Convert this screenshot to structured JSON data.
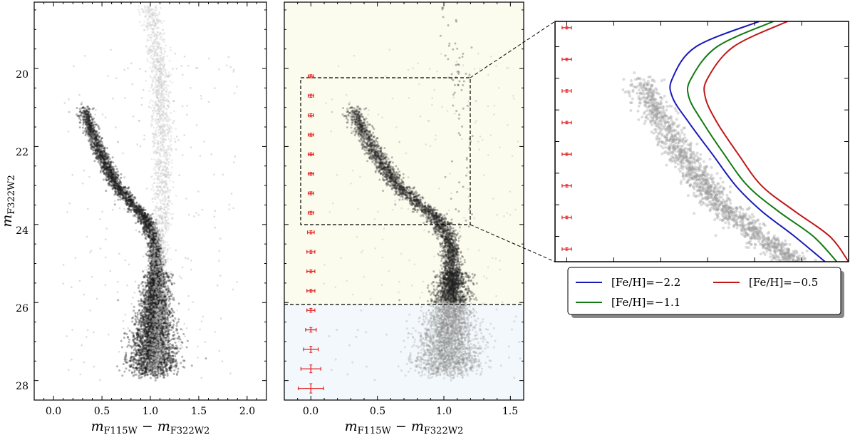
{
  "figure": {
    "panels_count": 3
  },
  "chart_data": [
    {
      "type": "scatter",
      "panel": "left",
      "xlabel": "m_F115W − m_F322W2",
      "xlabel_main": "m",
      "xlabel_sub1": "F115W",
      "xlabel_minus": " − ",
      "xlabel_m2": "m",
      "xlabel_sub2": "F322W2",
      "ylabel": "m_F322W2",
      "ylabel_main": "m",
      "ylabel_sub": "F322W2",
      "xlim": [
        -0.2,
        2.2
      ],
      "ylim": [
        28.5,
        18.3
      ],
      "y_inverted": true,
      "xticks": [
        0.0,
        0.5,
        1.0,
        1.5,
        2.0
      ],
      "xtick_labels": [
        "0.0",
        "0.5",
        "1.0",
        "1.5",
        "2.0"
      ],
      "yticks": [
        20,
        22,
        24,
        26,
        28
      ],
      "ytick_labels": [
        "20",
        "22",
        "24",
        "26",
        "28"
      ],
      "ridge_line": {
        "y": [
          18.4,
          19.0,
          20.0,
          21.0,
          21.5,
          22.0,
          22.5,
          23.0,
          23.5,
          23.8,
          24.2,
          24.5,
          25.0,
          25.5,
          26.0,
          26.5,
          27.0,
          27.5
        ],
        "x": [
          0.98,
          1.04,
          1.09,
          1.11,
          1.12,
          1.13,
          1.13,
          1.13,
          1.13,
          1.12,
          1.1,
          1.09,
          1.09,
          1.09,
          1.09,
          1.08,
          1.08,
          1.06
        ]
      },
      "main_sequence": {
        "y": [
          21.2,
          21.5,
          22.0,
          22.5,
          23.0,
          23.5,
          23.8,
          24.0,
          24.3,
          24.6,
          25.0,
          25.5,
          26.0,
          26.5,
          27.0,
          27.5
        ],
        "x": [
          0.33,
          0.38,
          0.45,
          0.55,
          0.65,
          0.82,
          0.93,
          0.98,
          1.02,
          1.05,
          1.06,
          1.06,
          1.06,
          1.04,
          1.03,
          1.03
        ]
      },
      "point_color": "#2a2a2a",
      "field_color": "#d5d5d5"
    },
    {
      "type": "scatter",
      "panel": "middle",
      "xlabel": "m_F115W − m_F322W2",
      "xlabel_main": "m",
      "xlabel_sub1": "F115W",
      "xlabel_minus": " − ",
      "xlabel_m2": "m",
      "xlabel_sub2": "F322W2",
      "xlim": [
        -0.2,
        1.6
      ],
      "ylim": [
        28.5,
        18.3
      ],
      "xticks": [
        0.0,
        0.5,
        1.0,
        1.5
      ],
      "xtick_labels": [
        "0.0",
        "0.5",
        "1.0",
        "1.5"
      ],
      "yticks": [
        20,
        22,
        24,
        26,
        28
      ],
      "background_bands": [
        {
          "y_from": 18.3,
          "y_to": 26.0,
          "color": "#fbfbee"
        },
        {
          "y_from": 26.0,
          "y_to": 28.5,
          "color": "#f2f8fb"
        }
      ],
      "dashed_hline": 26.0,
      "zoom_box": {
        "x": [
          -0.05,
          1.2
        ],
        "y": [
          20.1,
          23.9
        ]
      },
      "error_bars": {
        "color": "#e02020",
        "x": 0.0,
        "y": [
          20.2,
          20.7,
          21.2,
          21.7,
          22.2,
          22.7,
          23.2,
          23.7,
          24.2,
          24.7,
          25.2,
          25.7,
          26.2,
          26.7,
          27.2,
          27.7,
          28.2
        ],
        "xerr": [
          0.02,
          0.02,
          0.02,
          0.02,
          0.02,
          0.02,
          0.02,
          0.02,
          0.025,
          0.03,
          0.03,
          0.03,
          0.03,
          0.04,
          0.055,
          0.075,
          0.095
        ],
        "yerr": [
          0.04,
          0.04,
          0.04,
          0.04,
          0.04,
          0.04,
          0.04,
          0.04,
          0.04,
          0.04,
          0.04,
          0.04,
          0.05,
          0.06,
          0.08,
          0.1,
          0.12
        ]
      }
    },
    {
      "type": "line",
      "panel": "zoom",
      "xlim": [
        -0.05,
        1.2
      ],
      "ylim": [
        23.9,
        20.1
      ],
      "series": [
        {
          "name": "[Fe/H]=−2.2",
          "color": "#1a1ab8",
          "y": [
            20.1,
            20.5,
            21.0,
            21.3,
            21.7,
            22.2,
            22.7,
            23.1,
            23.5,
            23.9
          ],
          "x": [
            0.82,
            0.55,
            0.45,
            0.45,
            0.52,
            0.62,
            0.72,
            0.83,
            0.97,
            1.1
          ]
        },
        {
          "name": "[Fe/H]=−1.1",
          "color": "#117a11",
          "y": [
            20.1,
            20.5,
            21.0,
            21.3,
            21.7,
            22.2,
            22.7,
            23.1,
            23.5,
            23.9
          ],
          "x": [
            0.88,
            0.64,
            0.53,
            0.52,
            0.58,
            0.67,
            0.77,
            0.9,
            1.05,
            1.15
          ]
        },
        {
          "name": "[Fe/H]=−0.5",
          "color": "#c01818",
          "y": [
            20.1,
            20.5,
            21.0,
            21.3,
            21.7,
            22.2,
            22.7,
            23.1,
            23.5,
            23.9
          ],
          "x": [
            0.94,
            0.71,
            0.6,
            0.59,
            0.64,
            0.73,
            0.83,
            0.97,
            1.12,
            1.2
          ]
        }
      ],
      "error_bars": {
        "color": "#e02020",
        "x": 0.0,
        "y": [
          20.2,
          20.7,
          21.2,
          21.7,
          22.2,
          22.7,
          23.2,
          23.7
        ],
        "xerr": [
          0.02,
          0.02,
          0.02,
          0.02,
          0.02,
          0.02,
          0.02,
          0.02
        ]
      },
      "legend_placement": "bottom",
      "legend_columns": [
        [
          "[Fe/H]=−2.2",
          "[Fe/H]=−1.1"
        ],
        [
          "[Fe/H]=−0.5"
        ]
      ]
    }
  ]
}
